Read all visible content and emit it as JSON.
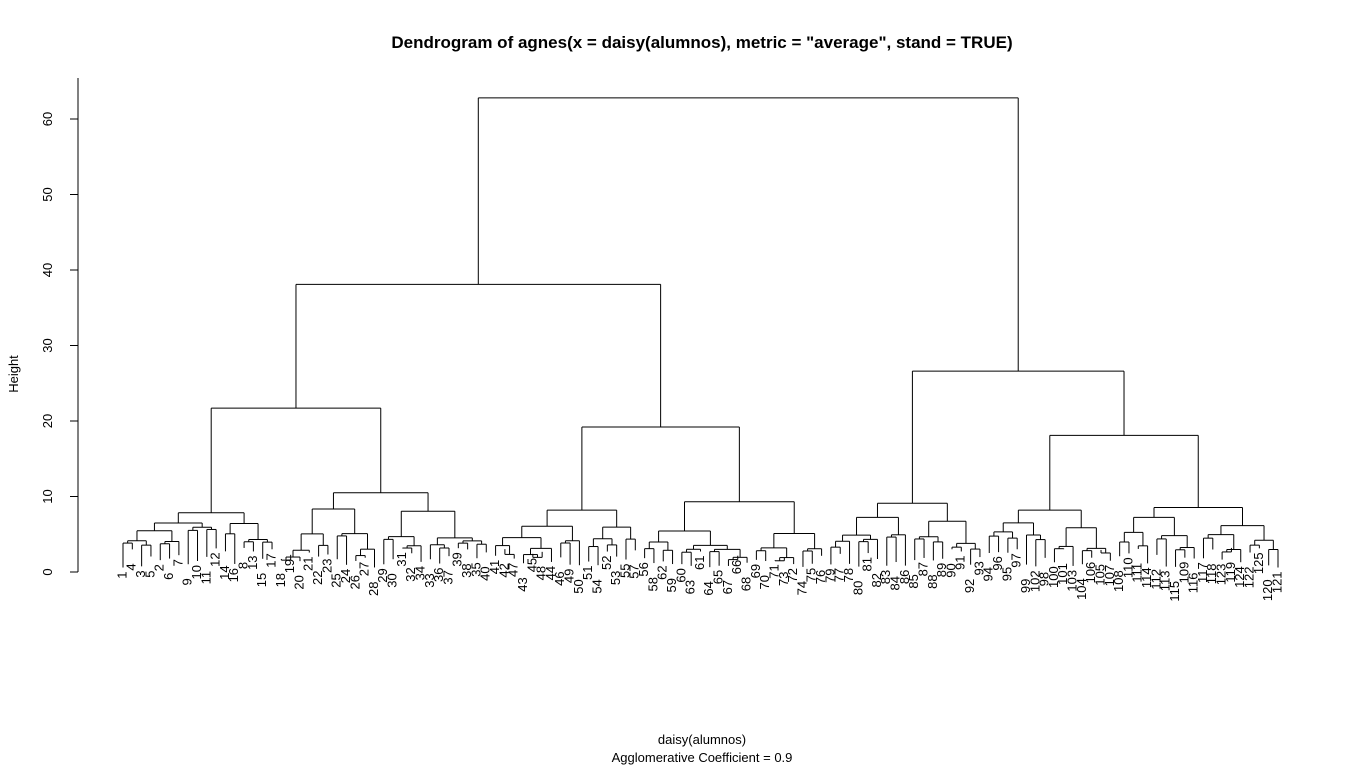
{
  "chart_data": {
    "type": "dendrogram",
    "title": "Dendrogram of  agnes(x = daisy(alumnos), metric = \"average\", stand = TRUE)",
    "xlabel": "daisy(alumnos)",
    "ylabel": "Height",
    "sub": "Agglomerative Coefficient =  0.9",
    "ylim": [
      0,
      65
    ],
    "yticks": [
      "0",
      "10",
      "20",
      "30",
      "40",
      "50",
      "60"
    ],
    "leaves": [
      "1",
      "4",
      "3",
      "5",
      "2",
      "6",
      "7",
      "9",
      "10",
      "11",
      "12",
      "14",
      "16",
      "8",
      "13",
      "15",
      "17",
      "18",
      "19",
      "20",
      "21",
      "22",
      "23",
      "25",
      "24",
      "26",
      "27",
      "28",
      "29",
      "30",
      "31",
      "32",
      "34",
      "33",
      "36",
      "37",
      "39",
      "38",
      "35",
      "40",
      "41",
      "42",
      "47",
      "43",
      "45",
      "48",
      "44",
      "46",
      "49",
      "50",
      "51",
      "54",
      "52",
      "53",
      "55",
      "57",
      "56",
      "58",
      "62",
      "59",
      "60",
      "63",
      "61",
      "64",
      "65",
      "67",
      "66",
      "68",
      "69",
      "70",
      "71",
      "73",
      "72",
      "74",
      "75",
      "76",
      "79",
      "77",
      "78",
      "80",
      "81",
      "82",
      "83",
      "84",
      "86",
      "85",
      "87",
      "88",
      "89",
      "90",
      "91",
      "92",
      "93",
      "94",
      "96",
      "95",
      "97",
      "99",
      "102",
      "98",
      "100",
      "101",
      "103",
      "104",
      "106",
      "105",
      "107",
      "108",
      "110",
      "111",
      "114",
      "112",
      "113",
      "115",
      "109",
      "116",
      "117",
      "118",
      "123",
      "119",
      "124",
      "122",
      "125",
      "120",
      "121"
    ],
    "heights": [
      {
        "leaf": "1",
        "h": 0
      },
      {
        "leaf": "4",
        "h": 0
      },
      {
        "leaf": "3",
        "h": 0
      },
      {
        "leaf": "5",
        "h": 0
      },
      {
        "leaf": "2",
        "h": 4
      },
      {
        "leaf": "6",
        "h": 2
      },
      {
        "leaf": "7",
        "h": 0
      },
      {
        "leaf": "9",
        "h": -1
      },
      {
        "leaf": "10",
        "h": -2
      },
      {
        "leaf": "11",
        "h": 0
      },
      {
        "leaf": "12",
        "h": 1
      },
      {
        "leaf": "14",
        "h": 0
      },
      {
        "leaf": "16",
        "h": -1
      },
      {
        "leaf": "8",
        "h": 0
      },
      {
        "leaf": "13",
        "h": -1
      },
      {
        "leaf": "15",
        "h": 0
      },
      {
        "leaf": "17",
        "h": 1
      }
    ],
    "merges": [
      {
        "height": 62.8,
        "desc": "root"
      },
      {
        "height": 38.1
      },
      {
        "height": 26.6
      },
      {
        "height": 21.7
      },
      {
        "height": 19.2
      },
      {
        "height": 18.1
      },
      {
        "height": 15.0
      },
      {
        "height": 13.3
      },
      {
        "height": 13.0
      },
      {
        "height": 12.2
      },
      {
        "height": 11.7
      },
      {
        "height": 11.2
      }
    ]
  }
}
